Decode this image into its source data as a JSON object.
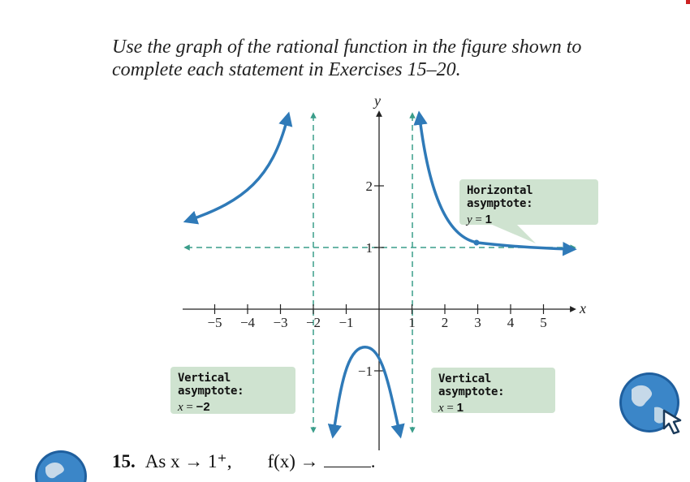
{
  "instructions": {
    "line1": "Use the graph of the rational function in the figure shown to",
    "line2": "complete each statement in Exercises 15–20."
  },
  "graph": {
    "x_axis_label": "x",
    "y_axis_label": "y",
    "x_ticks": [
      "−5",
      "−4",
      "−3",
      "−2",
      "−1",
      "1",
      "2",
      "3",
      "4",
      "5"
    ],
    "y_ticks": [
      "2",
      "1",
      "−1"
    ],
    "curve_color": "#2f7ab8",
    "asymptote_color": "#3a9d8a",
    "x_range": [
      -5.8,
      6.5
    ],
    "y_range": [
      -3.7,
      5.8
    ],
    "vertical_asymptotes": [
      -2,
      1
    ],
    "horizontal_asymptote": 1
  },
  "callouts": {
    "horizontal": {
      "title": "Horizontal asymptote:",
      "var": "y",
      "eq": " = ",
      "val": "1"
    },
    "vertical_left": {
      "title": "Vertical asymptote:",
      "var": "x",
      "eq": " = ",
      "val": "−2"
    },
    "vertical_right": {
      "title": "Vertical asymptote:",
      "var": "x",
      "eq": " = ",
      "val": "1"
    }
  },
  "exercise": {
    "number": "15.",
    "text": "As x → 1⁺,",
    "fx": "f(x) →",
    "end": "."
  },
  "icons": {
    "globe": "globe-cursor-icon"
  }
}
